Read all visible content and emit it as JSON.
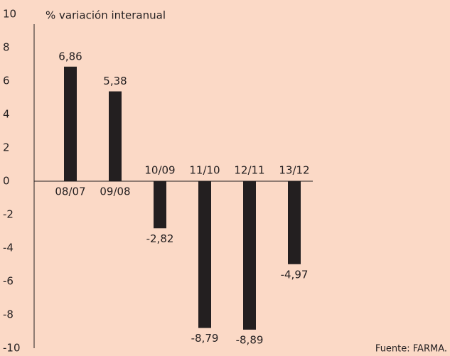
{
  "chart_data": {
    "type": "bar",
    "title": "% variación interanual",
    "source": "Fuente: FARMA.",
    "categories": [
      "08/07",
      "09/08",
      "10/09",
      "11/10",
      "12/11",
      "13/12"
    ],
    "values": [
      6.86,
      5.38,
      -2.82,
      -8.79,
      -8.89,
      -4.97
    ],
    "value_labels": [
      "6,86",
      "5,38",
      "-2,82",
      "-8,79",
      "-8,89",
      "-4,97"
    ],
    "color": "#231f20",
    "ylim": [
      -10,
      10
    ],
    "yticks": [
      -10,
      -8,
      -6,
      -4,
      -2,
      0,
      2,
      4,
      6,
      8,
      10
    ],
    "grid": false
  }
}
